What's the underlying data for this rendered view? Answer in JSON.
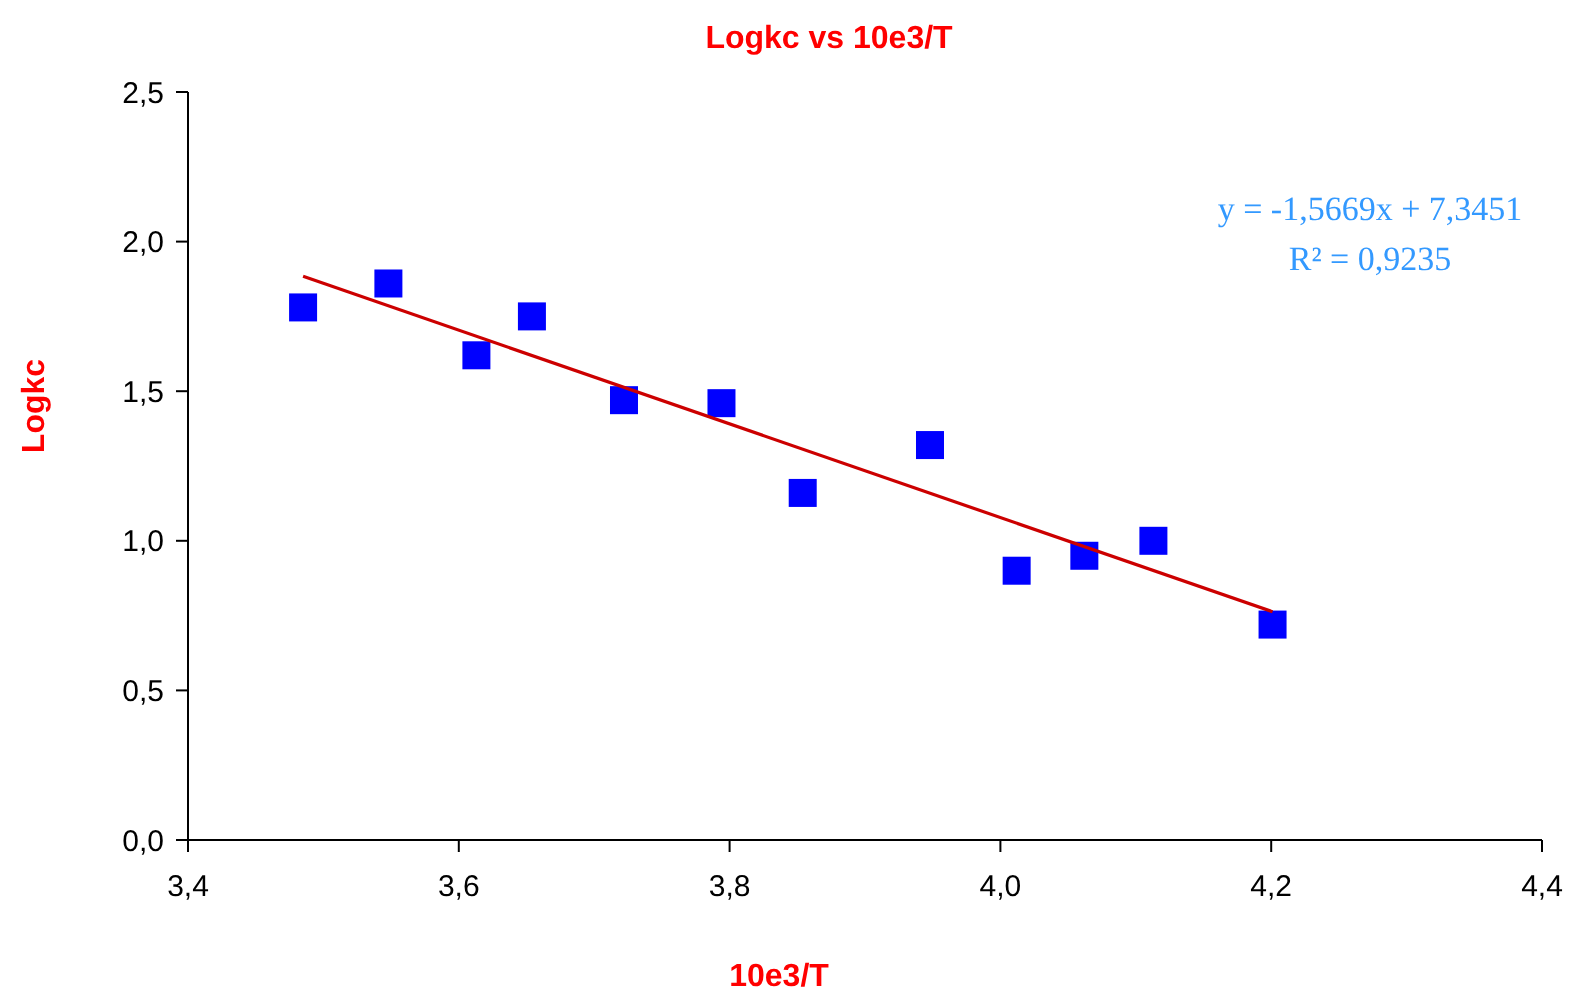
{
  "chart_data": {
    "type": "scatter",
    "title": "Logkc vs 10e3/T",
    "xlabel": "10e3/T",
    "ylabel": "Logkc",
    "annotations": [
      "y = -1,5669x + 7,3451",
      "R² = 0,9235"
    ],
    "xlim": [
      3.4,
      4.4
    ],
    "xticks": [
      {
        "value": 3.4,
        "label": "3,4"
      },
      {
        "value": 3.6,
        "label": "3,6"
      },
      {
        "value": 3.8,
        "label": "3,8"
      },
      {
        "value": 4.0,
        "label": "4,0"
      },
      {
        "value": 4.2,
        "label": "4,2"
      },
      {
        "value": 4.4,
        "label": "4,4"
      }
    ],
    "ylim": [
      0,
      2.5
    ],
    "yticks": [
      {
        "value": 0,
        "label": "0,0"
      },
      {
        "value": 0.5,
        "label": "0,5"
      },
      {
        "value": 1.0,
        "label": "1,0"
      },
      {
        "value": 1.5,
        "label": "1,5"
      },
      {
        "value": 2.0,
        "label": "2,0"
      },
      {
        "value": 2.5,
        "label": "2,5"
      }
    ],
    "grid": false,
    "marker": "square",
    "series": [
      {
        "color": "#0000ff",
        "x": [
          3.485,
          3.548,
          3.613,
          3.654,
          3.722,
          3.794,
          3.854,
          3.948,
          4.012,
          4.062,
          4.113,
          4.201
        ],
        "values": [
          1.78,
          1.86,
          1.62,
          1.75,
          1.47,
          1.46,
          1.16,
          1.32,
          0.9,
          0.95,
          1.0,
          0.72
        ]
      },
      {
        "type": "line",
        "color": "#cc0000",
        "x": [
          3.485,
          4.201
        ],
        "values": [
          1.884,
          0.763
        ],
        "marker": "none",
        "line_style": "solid"
      }
    ]
  }
}
